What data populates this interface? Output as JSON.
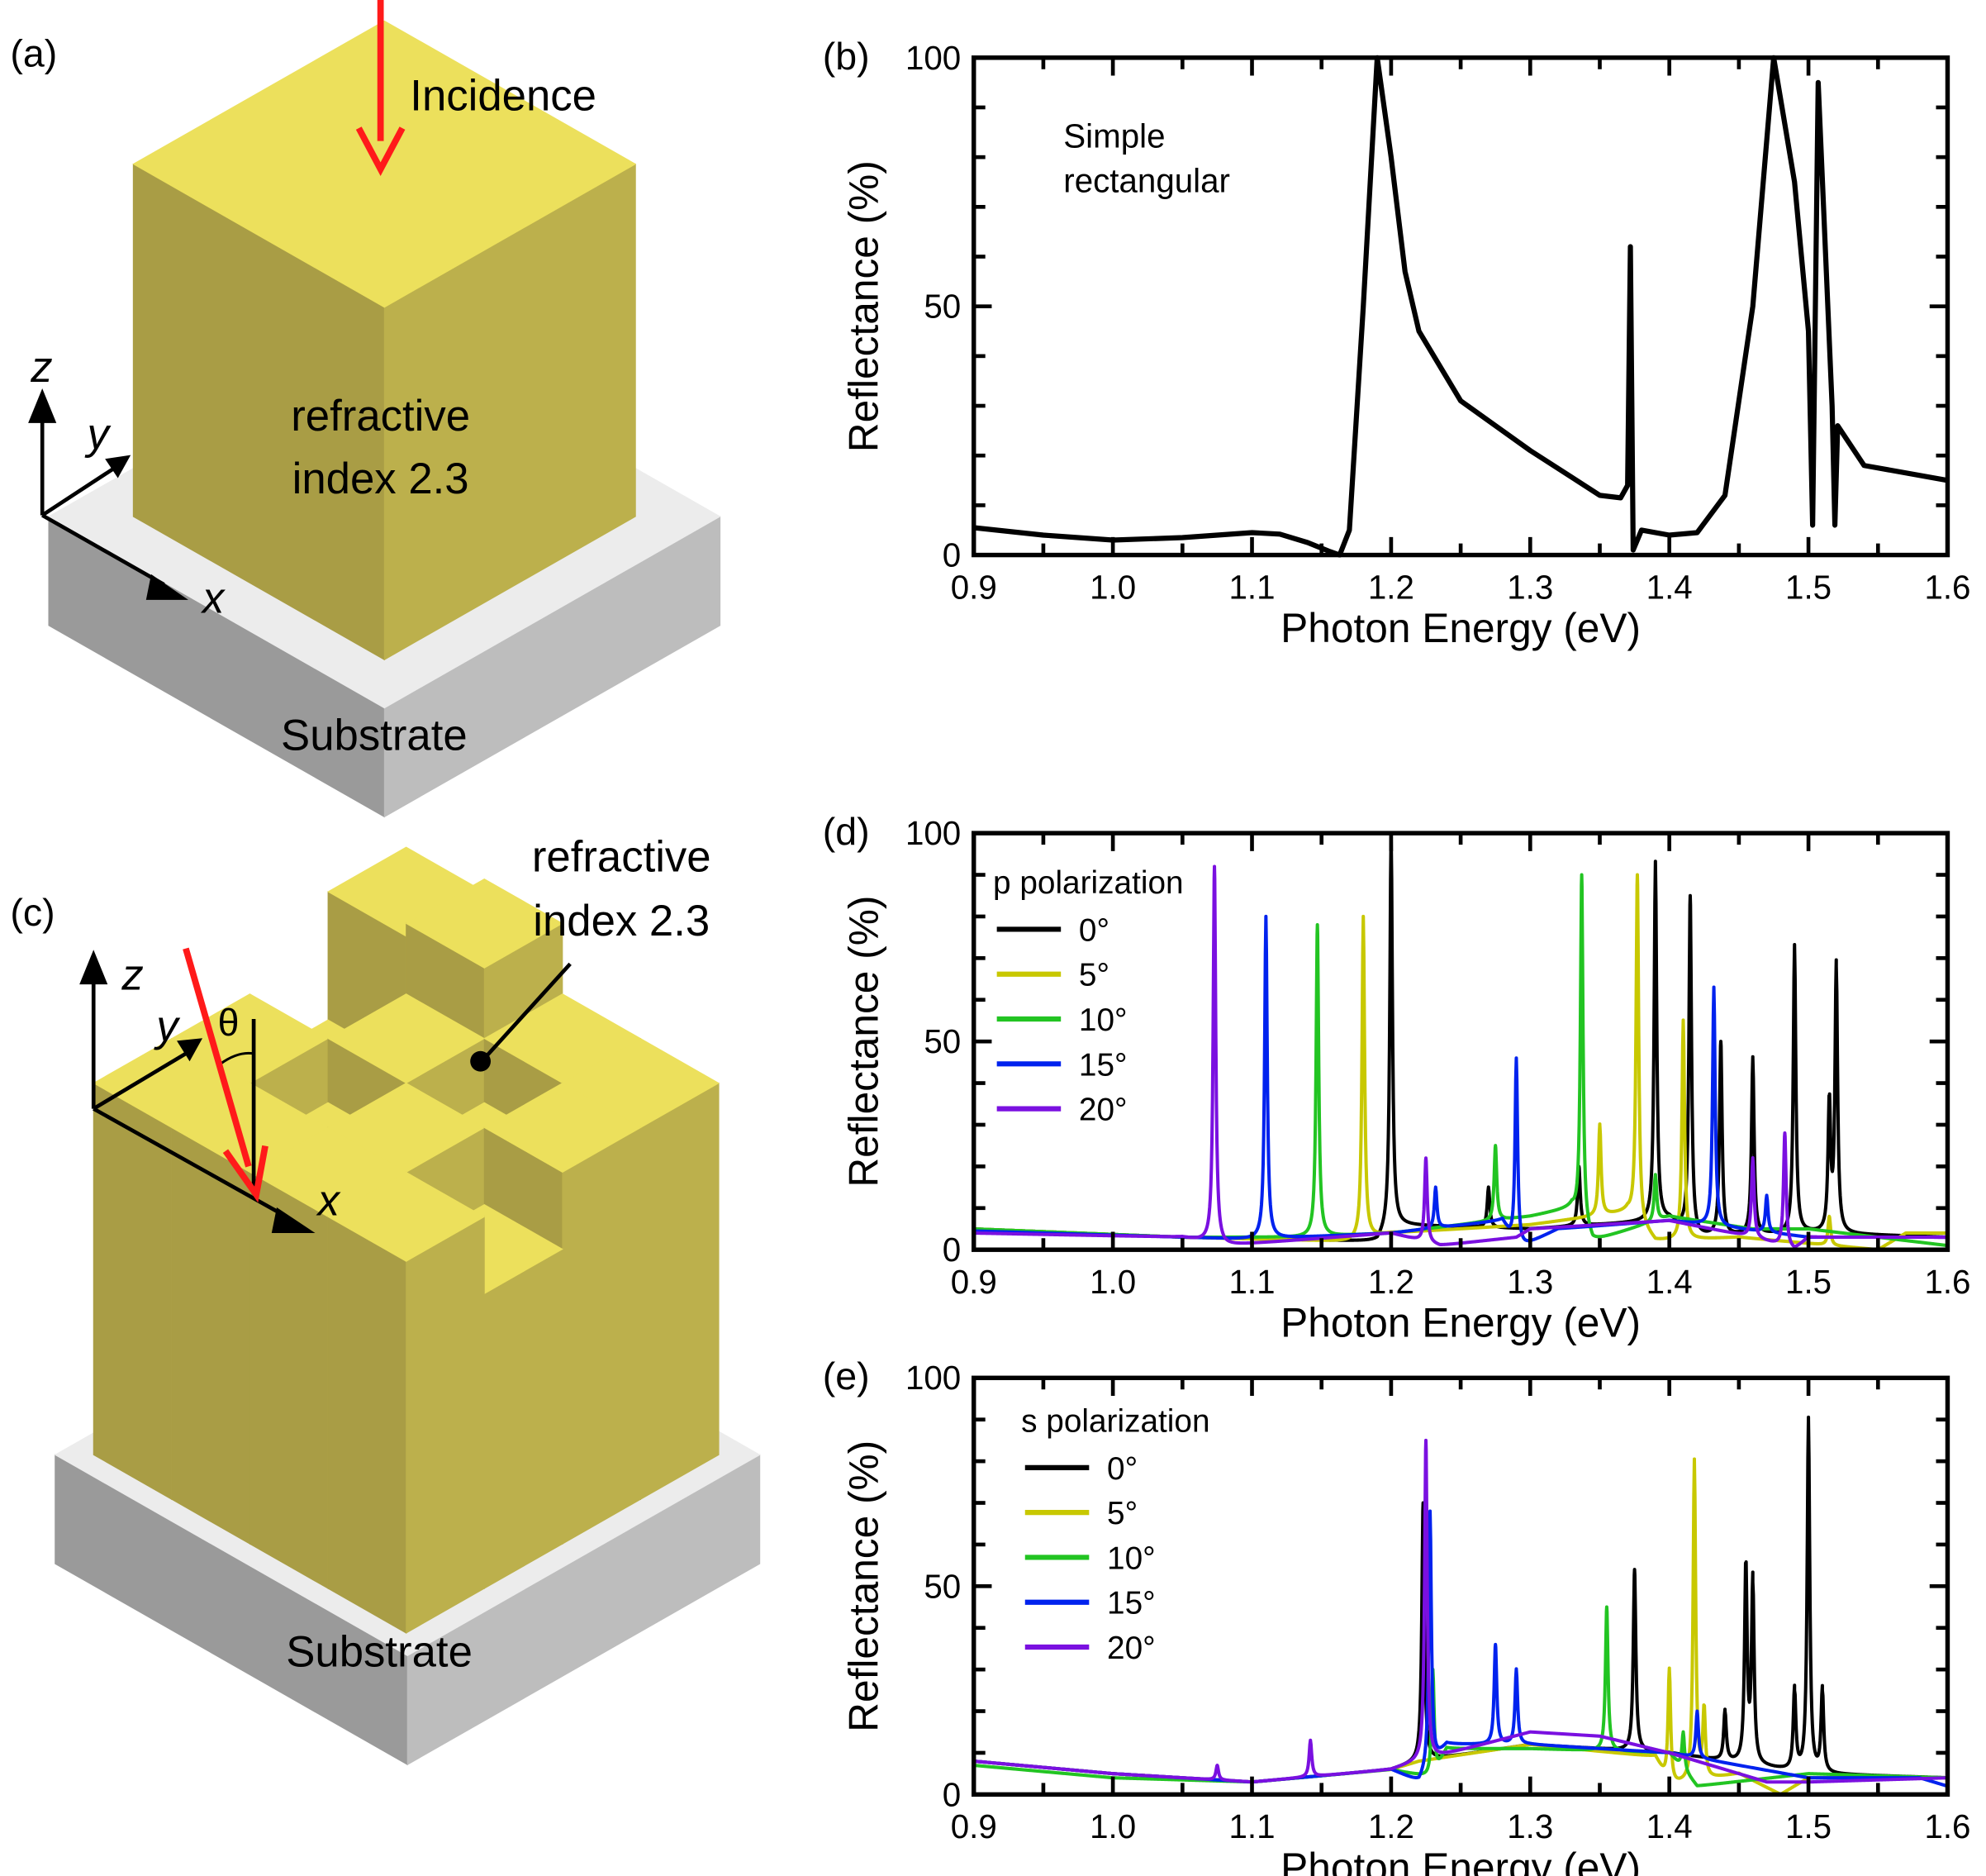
{
  "panel_a": {
    "label": "(a)",
    "incidence": "Incidence",
    "material_line1": "refractive",
    "material_line2": "index 2.3",
    "substrate": "Substrate",
    "axis_x": "x",
    "axis_y": "y",
    "axis_z": "z"
  },
  "panel_c": {
    "label": "(c)",
    "material_line1": "refractive",
    "material_line2": "index 2.3",
    "substrate": "Substrate",
    "angle": "θ",
    "axis_x": "x",
    "axis_y": "y",
    "axis_z": "z"
  },
  "colors": {
    "pillar_top": "#ece05c",
    "pillar_left": "#a99d45",
    "pillar_right": "#bcb04c",
    "substrate_top": "#ececec",
    "substrate_left": "#9a9a9a",
    "substrate_right": "#bdbdbd",
    "incidence_arrow": "#ff1a1a"
  },
  "chart_data": [
    {
      "panel": "(b)",
      "type": "line",
      "xlabel": "Photon Energy (eV)",
      "ylabel": "Reflectance (%)",
      "xlim": [
        0.9,
        1.6
      ],
      "ylim": [
        0,
        100
      ],
      "xticks": [
        "0.9",
        "1.0",
        "1.1",
        "1.2",
        "1.3",
        "1.4",
        "1.5",
        "1.6"
      ],
      "yticks": [
        "0",
        "50",
        "100"
      ],
      "annotation": [
        "Simple",
        "rectangular"
      ],
      "series": [
        {
          "name": "Simple rectangular",
          "color": "#000000",
          "points": [
            [
              0.9,
              5.5
            ],
            [
              0.95,
              4
            ],
            [
              1.0,
              3
            ],
            [
              1.05,
              3.5
            ],
            [
              1.1,
              4.5
            ],
            [
              1.12,
              4.2
            ],
            [
              1.14,
              2.5
            ],
            [
              1.155,
              0.8
            ],
            [
              1.163,
              0
            ],
            [
              1.17,
              5
            ],
            [
              1.18,
              50
            ],
            [
              1.19,
              100
            ],
            [
              1.2,
              80
            ],
            [
              1.21,
              57
            ],
            [
              1.22,
              45
            ],
            [
              1.25,
              31
            ],
            [
              1.3,
              21
            ],
            [
              1.35,
              12
            ],
            [
              1.365,
              11.5
            ],
            [
              1.37,
              14
            ],
            [
              1.372,
              62
            ],
            [
              1.374,
              1
            ],
            [
              1.38,
              5
            ],
            [
              1.4,
              4
            ],
            [
              1.42,
              4.5
            ],
            [
              1.44,
              12
            ],
            [
              1.46,
              50
            ],
            [
              1.475,
              100
            ],
            [
              1.49,
              75
            ],
            [
              1.5,
              45
            ],
            [
              1.503,
              6
            ],
            [
              1.507,
              95
            ],
            [
              1.517,
              30
            ],
            [
              1.519,
              6
            ],
            [
              1.521,
              26
            ],
            [
              1.54,
              18
            ],
            [
              1.6,
              15
            ]
          ]
        }
      ]
    },
    {
      "panel": "(d)",
      "type": "line",
      "xlabel": "Photon Energy (eV)",
      "ylabel": "Reflectance (%)",
      "xlim": [
        0.9,
        1.6
      ],
      "ylim": [
        0,
        100
      ],
      "xticks": [
        "0.9",
        "1.0",
        "1.1",
        "1.2",
        "1.3",
        "1.4",
        "1.5",
        "1.6"
      ],
      "yticks": [
        "0",
        "50",
        "100"
      ],
      "legend_title": "p polarization",
      "legend_position": "top-left",
      "series": [
        {
          "name": "0°",
          "color": "#000000",
          "baseline": [
            [
              0.9,
              5
            ],
            [
              1.05,
              3
            ],
            [
              1.19,
              2
            ],
            [
              1.2,
              6
            ],
            [
              1.3,
              5
            ],
            [
              1.4,
              7
            ],
            [
              1.42,
              3
            ],
            [
              1.5,
              4
            ],
            [
              1.6,
              3
            ]
          ],
          "peaks": [
            [
              1.2,
              100
            ],
            [
              1.27,
              15
            ],
            [
              1.335,
              20
            ],
            [
              1.39,
              93
            ],
            [
              1.415,
              85
            ],
            [
              1.437,
              50
            ],
            [
              1.46,
              46
            ],
            [
              1.49,
              73
            ],
            [
              1.515,
              35
            ],
            [
              1.52,
              68
            ]
          ]
        },
        {
          "name": "5°",
          "color": "#c8c800",
          "baseline": [
            [
              0.9,
              5
            ],
            [
              1.05,
              3
            ],
            [
              1.17,
              2
            ],
            [
              1.2,
              4
            ],
            [
              1.3,
              6
            ],
            [
              1.37,
              9
            ],
            [
              1.39,
              2
            ],
            [
              1.45,
              3
            ],
            [
              1.55,
              0
            ],
            [
              1.57,
              4
            ],
            [
              1.6,
              4
            ]
          ],
          "peaks": [
            [
              1.18,
              80
            ],
            [
              1.35,
              30
            ],
            [
              1.377,
              90
            ],
            [
              1.41,
              55
            ],
            [
              1.515,
              8
            ]
          ]
        },
        {
          "name": "10°",
          "color": "#22c422",
          "baseline": [
            [
              0.9,
              5
            ],
            [
              1.05,
              3
            ],
            [
              1.14,
              3
            ],
            [
              1.2,
              4
            ],
            [
              1.3,
              8
            ],
            [
              1.33,
              10
            ],
            [
              1.345,
              2
            ],
            [
              1.4,
              8
            ],
            [
              1.46,
              5
            ],
            [
              1.5,
              5
            ],
            [
              1.6,
              1
            ]
          ],
          "peaks": [
            [
              1.147,
              78
            ],
            [
              1.275,
              25
            ],
            [
              1.337,
              90
            ],
            [
              1.39,
              18
            ]
          ]
        },
        {
          "name": "15°",
          "color": "#0022ee",
          "baseline": [
            [
              0.9,
              4.5
            ],
            [
              1.05,
              3
            ],
            [
              1.1,
              2.5
            ],
            [
              1.2,
              4
            ],
            [
              1.28,
              7
            ],
            [
              1.29,
              0
            ],
            [
              1.32,
              5
            ],
            [
              1.4,
              7
            ],
            [
              1.45,
              5
            ],
            [
              1.5,
              3
            ],
            [
              1.6,
              3
            ]
          ],
          "peaks": [
            [
              1.11,
              80
            ],
            [
              1.232,
              15
            ],
            [
              1.29,
              46
            ],
            [
              1.432,
              63
            ],
            [
              1.47,
              13
            ]
          ]
        },
        {
          "name": "20°",
          "color": "#7a10e0",
          "baseline": [
            [
              0.9,
              4
            ],
            [
              1.05,
              3
            ],
            [
              1.08,
              1
            ],
            [
              1.2,
              4
            ],
            [
              1.235,
              1
            ],
            [
              1.29,
              3
            ],
            [
              1.3,
              5
            ],
            [
              1.4,
              7
            ],
            [
              1.46,
              3
            ],
            [
              1.49,
              0
            ],
            [
              1.5,
              3
            ],
            [
              1.6,
              3
            ]
          ],
          "peaks": [
            [
              1.073,
              92
            ],
            [
              1.225,
              22
            ],
            [
              1.46,
              22
            ],
            [
              1.483,
              28
            ]
          ]
        }
      ]
    },
    {
      "panel": "(e)",
      "type": "line",
      "xlabel": "Photon Energy (eV)",
      "ylabel": "Reflectance (%)",
      "xlim": [
        0.9,
        1.6
      ],
      "ylim": [
        0,
        100
      ],
      "xticks": [
        "0.9",
        "1.0",
        "1.1",
        "1.2",
        "1.3",
        "1.4",
        "1.5",
        "1.6"
      ],
      "yticks": [
        "0",
        "50",
        "100"
      ],
      "legend_title": "s polarization",
      "legend_position": "top-left",
      "series": [
        {
          "name": "0°",
          "color": "#000000",
          "baseline": [
            [
              0.9,
              8
            ],
            [
              1.0,
              5
            ],
            [
              1.1,
              3
            ],
            [
              1.2,
              6
            ],
            [
              1.22,
              8
            ],
            [
              1.3,
              12
            ],
            [
              1.4,
              10
            ],
            [
              1.5,
              5
            ],
            [
              1.6,
              4
            ]
          ],
          "peaks": [
            [
              1.223,
              70
            ],
            [
              1.375,
              54
            ],
            [
              1.44,
              20
            ],
            [
              1.455,
              55
            ],
            [
              1.46,
              51
            ],
            [
              1.49,
              25
            ],
            [
              1.5,
              90
            ],
            [
              1.51,
              25
            ]
          ]
        },
        {
          "name": "5°",
          "color": "#c8c800",
          "baseline": [
            [
              0.9,
              8
            ],
            [
              1.0,
              5
            ],
            [
              1.1,
              3
            ],
            [
              1.2,
              6
            ],
            [
              1.22,
              8
            ],
            [
              1.3,
              12
            ],
            [
              1.39,
              9
            ],
            [
              1.4,
              2
            ],
            [
              1.45,
              5
            ],
            [
              1.48,
              0
            ],
            [
              1.5,
              4
            ],
            [
              1.6,
              4
            ]
          ],
          "peaks": [
            [
              1.4,
              30
            ],
            [
              1.418,
              80
            ],
            [
              1.425,
              20
            ]
          ]
        },
        {
          "name": "10°",
          "color": "#22c422",
          "baseline": [
            [
              0.9,
              7
            ],
            [
              1.0,
              4
            ],
            [
              1.1,
              3
            ],
            [
              1.2,
              6
            ],
            [
              1.23,
              4
            ],
            [
              1.24,
              11
            ],
            [
              1.3,
              11
            ],
            [
              1.4,
              10
            ],
            [
              1.42,
              2
            ],
            [
              1.5,
              5
            ],
            [
              1.6,
              4
            ]
          ],
          "peaks": [
            [
              1.23,
              30
            ],
            [
              1.355,
              45
            ],
            [
              1.41,
              15
            ]
          ]
        },
        {
          "name": "15°",
          "color": "#0022ee",
          "baseline": [
            [
              0.9,
              8
            ],
            [
              1.0,
              5
            ],
            [
              1.1,
              3
            ],
            [
              1.2,
              6
            ],
            [
              1.22,
              3
            ],
            [
              1.24,
              12
            ],
            [
              1.3,
              12
            ],
            [
              1.4,
              10
            ],
            [
              1.5,
              4
            ],
            [
              1.58,
              4
            ],
            [
              1.6,
              2
            ]
          ],
          "peaks": [
            [
              1.228,
              68
            ],
            [
              1.275,
              36
            ],
            [
              1.29,
              30
            ],
            [
              1.42,
              20
            ]
          ]
        },
        {
          "name": "20°",
          "color": "#7a10e0",
          "baseline": [
            [
              0.9,
              8
            ],
            [
              1.0,
              5
            ],
            [
              1.1,
              3
            ],
            [
              1.2,
              6
            ],
            [
              1.22,
              8
            ],
            [
              1.3,
              15
            ],
            [
              1.35,
              14
            ],
            [
              1.4,
              10
            ],
            [
              1.47,
              3
            ],
            [
              1.5,
              3
            ],
            [
              1.6,
              4
            ]
          ],
          "peaks": [
            [
              1.075,
              7
            ],
            [
              1.142,
              13
            ],
            [
              1.225,
              85
            ]
          ]
        }
      ]
    }
  ]
}
